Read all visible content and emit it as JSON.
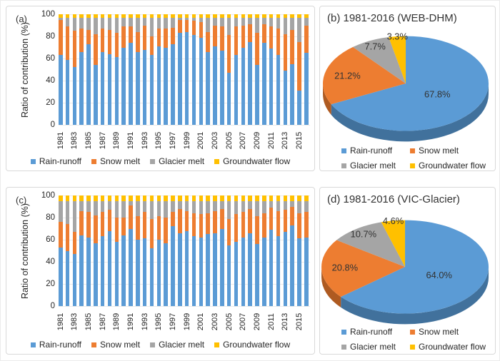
{
  "colors": {
    "rain": "#5B9BD5",
    "snow": "#ED7D31",
    "glacier": "#A5A5A5",
    "groundwater": "#FFC000",
    "rain_side": "#41719C",
    "snow_side": "#AE5A21",
    "glacier_side": "#7F7F7F",
    "groundwater_side": "#BF9000",
    "grid": "#EBEBEB",
    "panel_border": "#D9D9D9",
    "text": "#262626"
  },
  "panels": {
    "a": {
      "label": "(a)",
      "y_axis_title": "Ratio of contribution (%)"
    },
    "b": {
      "title": "(b) 1981-2016 (WEB-DHM)"
    },
    "c": {
      "label": "(c)",
      "y_axis_title": "Ratio of contribution (%)"
    },
    "d": {
      "title": "(d) 1981-2016 (VIC-Glacier)"
    }
  },
  "chart_data": [
    {
      "panel": "a",
      "type": "bar",
      "stacked": true,
      "ylabel": "Ratio of contribution (%)",
      "ylim": [
        0,
        100
      ],
      "y_ticks": [
        0,
        20,
        40,
        60,
        80,
        100
      ],
      "grid": true,
      "legend_position": "bottom",
      "categories": [
        "1981",
        "1982",
        "1983",
        "1984",
        "1985",
        "1986",
        "1987",
        "1988",
        "1989",
        "1990",
        "1991",
        "1992",
        "1993",
        "1994",
        "1995",
        "1996",
        "1997",
        "1998",
        "1999",
        "2000",
        "2001",
        "2002",
        "2003",
        "2004",
        "2005",
        "2006",
        "2007",
        "2008",
        "2009",
        "2010",
        "2011",
        "2012",
        "2013",
        "2014",
        "2015",
        "2016"
      ],
      "x_tick_labels": [
        "1981",
        "1983",
        "1985",
        "1987",
        "1989",
        "1991",
        "1993",
        "1995",
        "1997",
        "1999",
        "2001",
        "2003",
        "2005",
        "2007",
        "2009",
        "2011",
        "2013",
        "2015"
      ],
      "series": [
        {
          "name": "Rain-runoff",
          "color": "#5B9BD5",
          "values": [
            63,
            59,
            52,
            66,
            73,
            54,
            66,
            64,
            61,
            70,
            74,
            66,
            68,
            63,
            71,
            70,
            73,
            83,
            84,
            81,
            79,
            66,
            71,
            67,
            47,
            63,
            70,
            75,
            54,
            74,
            69,
            63,
            49,
            55,
            31,
            65
          ]
        },
        {
          "name": "Snow melt",
          "color": "#ED7D31",
          "values": [
            32,
            30,
            33,
            21,
            13,
            28,
            21,
            22,
            22,
            19,
            15,
            18,
            22,
            17,
            16,
            17,
            15,
            12,
            11,
            13,
            14,
            18,
            19,
            22,
            34,
            26,
            20,
            16,
            29,
            17,
            20,
            24,
            33,
            31,
            44,
            25
          ]
        },
        {
          "name": "Glacier melt",
          "color": "#A5A5A5",
          "values": [
            2,
            8,
            12,
            10,
            11,
            15,
            10,
            11,
            14,
            8,
            8,
            13,
            7,
            17,
            10,
            10,
            9,
            2,
            2,
            3,
            4,
            13,
            7,
            8,
            16,
            8,
            7,
            6,
            14,
            6,
            8,
            10,
            15,
            11,
            22,
            7
          ]
        },
        {
          "name": "Groundwater flow",
          "color": "#FFC000",
          "values": [
            3,
            3,
            3,
            3,
            3,
            3,
            3,
            3,
            3,
            3,
            3,
            3,
            3,
            3,
            3,
            3,
            3,
            3,
            3,
            3,
            3,
            3,
            3,
            3,
            3,
            3,
            3,
            3,
            3,
            3,
            3,
            3,
            3,
            3,
            3,
            3
          ]
        }
      ]
    },
    {
      "panel": "b",
      "type": "pie",
      "style": "3d",
      "title": "(b) 1981-2016 (WEB-DHM)",
      "labels": [
        "Rain-runoff",
        "Snow melt",
        "Glacier melt",
        "Groundwater flow"
      ],
      "values": [
        67.8,
        21.2,
        7.7,
        3.3
      ],
      "colors": [
        "#5B9BD5",
        "#ED7D31",
        "#A5A5A5",
        "#FFC000"
      ],
      "side_colors": [
        "#41719C",
        "#AE5A21",
        "#7F7F7F",
        "#BF9000"
      ],
      "data_labels": [
        "67.8%",
        "21.2%",
        "7.7%",
        "3.3%"
      ],
      "start_angle_deg": 0,
      "clockwise": true,
      "legend_position": "bottom",
      "label_radius": [
        0.45,
        0.72,
        0.85,
        0.98
      ]
    },
    {
      "panel": "c",
      "type": "bar",
      "stacked": true,
      "ylabel": "Ratio of contribution (%)",
      "ylim": [
        0,
        100
      ],
      "y_ticks": [
        0,
        20,
        40,
        60,
        80,
        100
      ],
      "grid": true,
      "legend_position": "bottom",
      "categories": [
        "1981",
        "1982",
        "1983",
        "1984",
        "1985",
        "1986",
        "1987",
        "1988",
        "1989",
        "1990",
        "1991",
        "1992",
        "1993",
        "1994",
        "1995",
        "1996",
        "1997",
        "1998",
        "1999",
        "2000",
        "2001",
        "2002",
        "2003",
        "2004",
        "2005",
        "2006",
        "2007",
        "2008",
        "2009",
        "2010",
        "2011",
        "2012",
        "2013",
        "2014",
        "2015",
        "2016"
      ],
      "x_tick_labels": [
        "1981",
        "1983",
        "1985",
        "1987",
        "1989",
        "1991",
        "1993",
        "1995",
        "1997",
        "1999",
        "2001",
        "2003",
        "2005",
        "2007",
        "2009",
        "2011",
        "2013",
        "2015"
      ],
      "series": [
        {
          "name": "Rain-runoff",
          "color": "#5B9BD5",
          "values": [
            53,
            50,
            47,
            64,
            62,
            57,
            63,
            68,
            58,
            64,
            70,
            60,
            61,
            52,
            60,
            57,
            72,
            66,
            68,
            63,
            62,
            65,
            66,
            70,
            55,
            58,
            62,
            66,
            56,
            62,
            69,
            63,
            67,
            73,
            61,
            62
          ]
        },
        {
          "name": "Snow melt",
          "color": "#ED7D31",
          "values": [
            23,
            24,
            20,
            22,
            23,
            25,
            22,
            19,
            22,
            16,
            21,
            21,
            24,
            27,
            21,
            23,
            13,
            22,
            18,
            21,
            21,
            19,
            20,
            18,
            24,
            25,
            23,
            22,
            25,
            22,
            20,
            23,
            20,
            17,
            23,
            23
          ]
        },
        {
          "name": "Glacier melt",
          "color": "#A5A5A5",
          "values": [
            19,
            21,
            28,
            9,
            10,
            13,
            10,
            8,
            15,
            15,
            4,
            14,
            10,
            16,
            14,
            15,
            10,
            7,
            9,
            11,
            12,
            11,
            9,
            7,
            16,
            12,
            10,
            7,
            14,
            11,
            6,
            9,
            8,
            5,
            11,
            10
          ]
        },
        {
          "name": "Groundwater flow",
          "color": "#FFC000",
          "values": [
            5,
            5,
            5,
            5,
            5,
            5,
            5,
            5,
            5,
            5,
            5,
            5,
            5,
            5,
            5,
            5,
            5,
            5,
            5,
            5,
            5,
            5,
            5,
            5,
            5,
            5,
            5,
            5,
            5,
            5,
            5,
            5,
            5,
            5,
            5,
            5
          ]
        }
      ]
    },
    {
      "panel": "d",
      "type": "pie",
      "style": "3d",
      "title": "(d) 1981-2016 (VIC-Glacier)",
      "labels": [
        "Rain-runoff",
        "Snow melt",
        "Glacier melt",
        "Groundwater flow"
      ],
      "values": [
        64.0,
        20.8,
        10.7,
        4.6
      ],
      "colors": [
        "#5B9BD5",
        "#ED7D31",
        "#A5A5A5",
        "#FFC000"
      ],
      "side_colors": [
        "#41719C",
        "#AE5A21",
        "#7F7F7F",
        "#BF9000"
      ],
      "data_labels": [
        "64.0%",
        "20.8%",
        "10.7%",
        "4.6%"
      ],
      "start_angle_deg": 0,
      "clockwise": true,
      "legend_position": "bottom",
      "label_radius": [
        0.45,
        0.72,
        0.85,
        0.98
      ]
    }
  ]
}
